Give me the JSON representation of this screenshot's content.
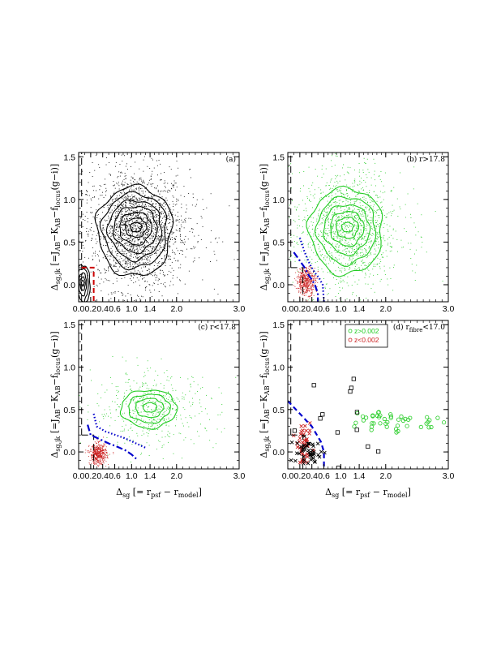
{
  "figure": {
    "xlabel": "Δsg [= rpsf − rmodel]",
    "ylabel": "Δsg,jk [=JAB−KAB−flocus(g−i)]"
  },
  "chart_data": [
    {
      "type": "scatter",
      "panel_label": "(a)",
      "xlim": [
        0.0,
        3.0
      ],
      "ylim": [
        -0.2,
        1.55
      ],
      "xticks": [
        "0.0",
        "0.2",
        "0.4",
        "0.6",
        "1.0",
        "1.4",
        "2.0",
        "3.0"
      ],
      "yticks": [
        "0.0",
        "0.5",
        "1.0",
        "1.5"
      ],
      "series": [
        {
          "color": "#000000",
          "kind": "points",
          "center": [
            1.1,
            0.65
          ],
          "spread": [
            0.55,
            0.35
          ],
          "density": "high"
        },
        {
          "color": "#000000",
          "kind": "contours",
          "center": [
            1.1,
            0.68
          ],
          "radii": [
            [
              0.12,
              0.05
            ],
            [
              0.22,
              0.1
            ],
            [
              0.33,
              0.17
            ],
            [
              0.45,
              0.24
            ],
            [
              0.56,
              0.31
            ],
            [
              0.68,
              0.39
            ],
            [
              0.8,
              0.47
            ]
          ]
        },
        {
          "color": "#000000",
          "kind": "contours",
          "center": [
            0.07,
            0.02
          ],
          "radii": [
            [
              0.02,
              0.03
            ],
            [
              0.04,
              0.07
            ],
            [
              0.06,
              0.12
            ],
            [
              0.09,
              0.17
            ],
            [
              0.12,
              0.21
            ]
          ]
        }
      ],
      "boundaries": [
        {
          "color": "#000000",
          "style": "long-dash",
          "x": [
            0.05,
            0.05
          ],
          "y": [
            -0.2,
            1.55
          ]
        },
        {
          "color": "#cc0000",
          "style": "dashed",
          "x": [
            0.05,
            0.25,
            0.25
          ],
          "y": [
            0.2,
            0.2,
            -0.2
          ]
        }
      ]
    },
    {
      "type": "scatter",
      "panel_label": "(b) r>17.8",
      "xlim": [
        0.0,
        3.0
      ],
      "ylim": [
        -0.2,
        1.55
      ],
      "xticks": [
        "0.0",
        "0.2",
        "0.4",
        "0.6",
        "1.0",
        "1.4",
        "2.0",
        "3.0"
      ],
      "yticks": [
        "0.0",
        "0.5",
        "1.0",
        "1.5"
      ],
      "series": [
        {
          "color": "#22cc22",
          "kind": "points",
          "center": [
            1.15,
            0.65
          ],
          "spread": [
            0.55,
            0.35
          ],
          "density": "medium"
        },
        {
          "color": "#22cc22",
          "kind": "contours",
          "center": [
            1.15,
            0.68
          ],
          "radii": [
            [
              0.12,
              0.05
            ],
            [
              0.23,
              0.11
            ],
            [
              0.35,
              0.18
            ],
            [
              0.48,
              0.26
            ],
            [
              0.62,
              0.35
            ],
            [
              0.78,
              0.45
            ]
          ]
        },
        {
          "color": "#cc2222",
          "kind": "points",
          "center": [
            0.3,
            0.05
          ],
          "spread": [
            0.08,
            0.08
          ],
          "density": "low"
        }
      ],
      "boundaries": [
        {
          "color": "#000000",
          "style": "long-dash",
          "x": [
            0.05,
            0.05
          ],
          "y": [
            0.2,
            1.55
          ]
        },
        {
          "color": "#000000",
          "style": "long-dash",
          "x": [
            0.05,
            0.25,
            0.25
          ],
          "y": [
            0.2,
            0.2,
            -0.2
          ]
        },
        {
          "color": "#0000cc",
          "style": "dash-dot",
          "x": [
            0.1,
            0.18,
            0.28,
            0.34,
            0.4,
            0.45,
            0.5,
            0.5
          ],
          "y": [
            0.38,
            0.3,
            0.2,
            0.12,
            0.06,
            0.0,
            -0.1,
            -0.2
          ]
        },
        {
          "color": "#0000cc",
          "style": "dotted",
          "x": [
            0.2,
            0.28,
            0.36,
            0.44,
            0.52,
            0.58,
            0.6
          ],
          "y": [
            0.55,
            0.38,
            0.25,
            0.15,
            0.08,
            0.0,
            -0.2
          ]
        }
      ]
    },
    {
      "type": "scatter",
      "panel_label": "(c) r<17.8",
      "xlim": [
        0.0,
        3.0
      ],
      "ylim": [
        -0.2,
        1.55
      ],
      "xticks": [
        "0.0",
        "0.2",
        "0.4",
        "0.6",
        "1.0",
        "1.4",
        "2.0",
        "3.0"
      ],
      "yticks": [
        "0.0",
        "0.5",
        "1.0",
        "1.5"
      ],
      "series": [
        {
          "color": "#22cc22",
          "kind": "points",
          "center": [
            1.45,
            0.5
          ],
          "spread": [
            0.6,
            0.22
          ],
          "density": "low"
        },
        {
          "color": "#22cc22",
          "kind": "contours",
          "center": [
            1.4,
            0.53
          ],
          "radii": [
            [
              0.15,
              0.05
            ],
            [
              0.3,
              0.1
            ],
            [
              0.45,
              0.15
            ],
            [
              0.6,
              0.2
            ]
          ]
        },
        {
          "color": "#cc2222",
          "kind": "points",
          "center": [
            0.32,
            -0.02
          ],
          "spread": [
            0.07,
            0.06
          ],
          "density": "low"
        }
      ],
      "boundaries": [
        {
          "color": "#000000",
          "style": "long-dash",
          "x": [
            0.05,
            0.05
          ],
          "y": [
            0.2,
            1.55
          ]
        },
        {
          "color": "#000000",
          "style": "long-dash",
          "x": [
            0.05,
            0.25,
            0.25
          ],
          "y": [
            0.2,
            0.2,
            -0.2
          ]
        },
        {
          "color": "#0000cc",
          "style": "dash-dot",
          "x": [
            0.15,
            0.2,
            0.35,
            0.5,
            0.62,
            0.85,
            1.0,
            1.1
          ],
          "y": [
            0.32,
            0.2,
            0.15,
            0.1,
            0.07,
            0.02,
            -0.03,
            -0.08
          ]
        },
        {
          "color": "#0000cc",
          "style": "dotted",
          "x": [
            0.25,
            0.3,
            0.45,
            0.62,
            0.85,
            1.1,
            1.3
          ],
          "y": [
            0.45,
            0.3,
            0.24,
            0.2,
            0.16,
            0.1,
            0.05
          ]
        }
      ]
    },
    {
      "type": "scatter",
      "panel_label": "(d) rfibre<17.0",
      "xlim": [
        0.0,
        3.0
      ],
      "ylim": [
        -0.2,
        1.55
      ],
      "xticks": [
        "0.0",
        "0.2",
        "0.4",
        "0.6",
        "1.0",
        "1.4",
        "2.0",
        "3.0"
      ],
      "yticks": [
        "0.0",
        "0.5",
        "1.0",
        "1.5"
      ],
      "legend": [
        {
          "label": "z>0.002",
          "color": "#22cc22"
        },
        {
          "label": "z<0.002",
          "color": "#cc2222"
        }
      ],
      "series": [
        {
          "color": "#22cc22",
          "kind": "open-circles",
          "center": [
            2.1,
            0.37
          ],
          "spread": [
            0.45,
            0.07
          ],
          "density": "cluster"
        },
        {
          "color": "#cc2222",
          "kind": "crosses",
          "center": [
            0.28,
            0.05
          ],
          "spread": [
            0.06,
            0.12
          ],
          "density": "cluster"
        },
        {
          "color": "#000000",
          "kind": "open-squares",
          "center": [
            0.5,
            0.2
          ],
          "spread": [
            0.9,
            0.5
          ],
          "density": "sparse"
        },
        {
          "color": "#000000",
          "kind": "crosses",
          "center": [
            0.35,
            -0.02
          ],
          "spread": [
            0.15,
            0.08
          ],
          "density": "cluster"
        }
      ],
      "boundaries": [
        {
          "color": "#000000",
          "style": "long-dash",
          "x": [
            0.05,
            0.05
          ],
          "y": [
            0.2,
            1.55
          ]
        },
        {
          "color": "#000000",
          "style": "long-dash",
          "x": [
            0.05,
            0.25,
            0.25
          ],
          "y": [
            0.2,
            0.2,
            -0.2
          ]
        },
        {
          "color": "#0000cc",
          "style": "dashed",
          "x": [
            0.0,
            0.2,
            0.4,
            0.55,
            0.6,
            0.6
          ],
          "y": [
            0.6,
            0.45,
            0.3,
            0.12,
            0.0,
            -0.2
          ]
        }
      ]
    }
  ]
}
